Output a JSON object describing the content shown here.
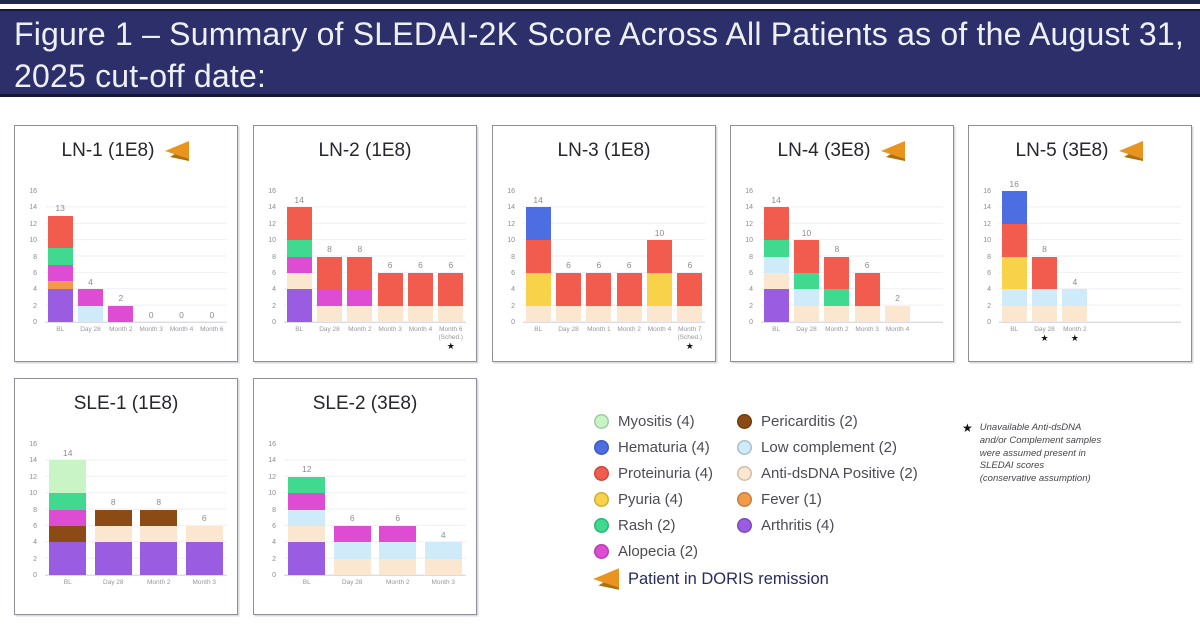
{
  "header": {
    "title": "Figure 1 – Summary of SLEDAI-2K Score Across All Patients as of the August 31, 2025 cut-off date:"
  },
  "colors": {
    "myositis": "#c9f5c6",
    "hematuria": "#4d6ee3",
    "proteinuria": "#f25c4e",
    "pyuria": "#f8d34a",
    "rash": "#3fd98f",
    "alopecia": "#de4cd3",
    "pericarditis": "#8c4a15",
    "low_complement": "#cfeaf8",
    "anti_dsdna": "#fbe7d0",
    "fever": "#f29a4a",
    "arthritis": "#9a5ce0",
    "arrow": "#e8941f",
    "arrow_dark": "#b06f0e",
    "banner_bg": "#2c2f6a"
  },
  "legend": {
    "columns": [
      [
        {
          "key": "myositis",
          "label": "Myositis (4)"
        },
        {
          "key": "hematuria",
          "label": "Hematuria (4)"
        },
        {
          "key": "proteinuria",
          "label": "Proteinuria (4)"
        },
        {
          "key": "pyuria",
          "label": "Pyuria (4)"
        },
        {
          "key": "rash",
          "label": "Rash (2)"
        },
        {
          "key": "alopecia",
          "label": "Alopecia (2)"
        }
      ],
      [
        {
          "key": "pericarditis",
          "label": "Pericarditis (2)"
        },
        {
          "key": "low_complement",
          "label": "Low complement (2)"
        },
        {
          "key": "anti_dsdna",
          "label": "Anti-dsDNA Positive (2)"
        },
        {
          "key": "fever",
          "label": "Fever (1)"
        },
        {
          "key": "arthritis",
          "label": "Arthritis (4)"
        }
      ]
    ],
    "doris_label": "Patient in DORIS remission"
  },
  "footnote": {
    "symbol": "★",
    "lines": [
      "Unavailable Anti-dsDNA",
      "and/or Complement samples",
      "were assumed present in",
      "SLEDAI scores",
      "(conservative assumption)"
    ]
  },
  "chart_data": [
    {
      "id": "ln1",
      "type": "bar",
      "title": "LN-1 (1E8)",
      "doris_arrow": true,
      "ylim": [
        0,
        16
      ],
      "yticks": [
        16,
        14,
        12,
        10,
        8,
        6,
        4,
        2,
        0
      ],
      "slots": 6,
      "categories": [
        {
          "label": "BL"
        },
        {
          "label": "Day 28"
        },
        {
          "label": "Month 2"
        },
        {
          "label": "Month 3"
        },
        {
          "label": "Month 4"
        },
        {
          "label": "Month 6"
        }
      ],
      "bars": [
        {
          "total": 13,
          "segments": [
            {
              "key": "arthritis",
              "value": 4
            },
            {
              "key": "fever",
              "value": 1
            },
            {
              "key": "alopecia",
              "value": 2
            },
            {
              "key": "rash",
              "value": 2
            },
            {
              "key": "proteinuria",
              "value": 4
            }
          ]
        },
        {
          "total": 4,
          "segments": [
            {
              "key": "low_complement",
              "value": 2
            },
            {
              "key": "alopecia",
              "value": 2
            }
          ]
        },
        {
          "total": 2,
          "segments": [
            {
              "key": "alopecia",
              "value": 2
            }
          ]
        },
        {
          "total": 0,
          "segments": []
        },
        {
          "total": 0,
          "segments": []
        },
        {
          "total": 0,
          "segments": []
        }
      ]
    },
    {
      "id": "ln2",
      "type": "bar",
      "title": "LN-2 (1E8)",
      "doris_arrow": false,
      "ylim": [
        0,
        16
      ],
      "yticks": [
        16,
        14,
        12,
        10,
        8,
        6,
        4,
        2,
        0
      ],
      "slots": 6,
      "categories": [
        {
          "label": "BL"
        },
        {
          "label": "Day 28"
        },
        {
          "label": "Month 2"
        },
        {
          "label": "Month 3"
        },
        {
          "label": "Month 4"
        },
        {
          "label": "Month 6",
          "sublabel": "(Sched.)",
          "star": true
        }
      ],
      "bars": [
        {
          "total": 14,
          "segments": [
            {
              "key": "arthritis",
              "value": 4
            },
            {
              "key": "anti_dsdna",
              "value": 2
            },
            {
              "key": "alopecia",
              "value": 2
            },
            {
              "key": "rash",
              "value": 2
            },
            {
              "key": "proteinuria",
              "value": 4
            }
          ]
        },
        {
          "total": 8,
          "segments": [
            {
              "key": "anti_dsdna",
              "value": 2
            },
            {
              "key": "alopecia",
              "value": 2
            },
            {
              "key": "proteinuria",
              "value": 4
            }
          ]
        },
        {
          "total": 8,
          "segments": [
            {
              "key": "anti_dsdna",
              "value": 2
            },
            {
              "key": "alopecia",
              "value": 2
            },
            {
              "key": "proteinuria",
              "value": 4
            }
          ]
        },
        {
          "total": 6,
          "segments": [
            {
              "key": "anti_dsdna",
              "value": 2
            },
            {
              "key": "proteinuria",
              "value": 4
            }
          ]
        },
        {
          "total": 6,
          "segments": [
            {
              "key": "anti_dsdna",
              "value": 2
            },
            {
              "key": "proteinuria",
              "value": 4
            }
          ]
        },
        {
          "total": 6,
          "segments": [
            {
              "key": "anti_dsdna",
              "value": 2
            },
            {
              "key": "proteinuria",
              "value": 4
            }
          ]
        }
      ]
    },
    {
      "id": "ln3",
      "type": "bar",
      "title": "LN-3 (1E8)",
      "doris_arrow": false,
      "ylim": [
        0,
        16
      ],
      "yticks": [
        16,
        14,
        12,
        10,
        8,
        6,
        4,
        2,
        0
      ],
      "slots": 6,
      "categories": [
        {
          "label": "BL"
        },
        {
          "label": "Day 28"
        },
        {
          "label": "Month 1"
        },
        {
          "label": "Month 2"
        },
        {
          "label": "Month 4"
        },
        {
          "label": "Month 7",
          "sublabel": "(Sched.)",
          "star": true
        }
      ],
      "bars": [
        {
          "total": 14,
          "segments": [
            {
              "key": "anti_dsdna",
              "value": 2
            },
            {
              "key": "pyuria",
              "value": 4
            },
            {
              "key": "proteinuria",
              "value": 4
            },
            {
              "key": "hematuria",
              "value": 4
            }
          ]
        },
        {
          "total": 6,
          "segments": [
            {
              "key": "anti_dsdna",
              "value": 2
            },
            {
              "key": "proteinuria",
              "value": 4
            }
          ]
        },
        {
          "total": 6,
          "segments": [
            {
              "key": "anti_dsdna",
              "value": 2
            },
            {
              "key": "proteinuria",
              "value": 4
            }
          ]
        },
        {
          "total": 6,
          "segments": [
            {
              "key": "anti_dsdna",
              "value": 2
            },
            {
              "key": "proteinuria",
              "value": 4
            }
          ]
        },
        {
          "total": 10,
          "segments": [
            {
              "key": "anti_dsdna",
              "value": 2
            },
            {
              "key": "pyuria",
              "value": 4
            },
            {
              "key": "proteinuria",
              "value": 4
            }
          ]
        },
        {
          "total": 6,
          "segments": [
            {
              "key": "anti_dsdna",
              "value": 2
            },
            {
              "key": "proteinuria",
              "value": 4
            }
          ]
        }
      ]
    },
    {
      "id": "ln4",
      "type": "bar",
      "title": "LN-4 (3E8)",
      "doris_arrow": true,
      "ylim": [
        0,
        16
      ],
      "yticks": [
        16,
        14,
        12,
        10,
        8,
        6,
        4,
        2,
        0
      ],
      "slots": 6,
      "categories": [
        {
          "label": "BL"
        },
        {
          "label": "Day 28"
        },
        {
          "label": "Month 2"
        },
        {
          "label": "Month 3"
        },
        {
          "label": "Month 4"
        }
      ],
      "bars": [
        {
          "total": 14,
          "segments": [
            {
              "key": "arthritis",
              "value": 4
            },
            {
              "key": "anti_dsdna",
              "value": 2
            },
            {
              "key": "low_complement",
              "value": 2
            },
            {
              "key": "rash",
              "value": 2
            },
            {
              "key": "proteinuria",
              "value": 4
            }
          ]
        },
        {
          "total": 10,
          "segments": [
            {
              "key": "anti_dsdna",
              "value": 2
            },
            {
              "key": "low_complement",
              "value": 2
            },
            {
              "key": "rash",
              "value": 2
            },
            {
              "key": "proteinuria",
              "value": 4
            }
          ]
        },
        {
          "total": 8,
          "segments": [
            {
              "key": "anti_dsdna",
              "value": 2
            },
            {
              "key": "rash",
              "value": 2
            },
            {
              "key": "proteinuria",
              "value": 4
            }
          ]
        },
        {
          "total": 6,
          "segments": [
            {
              "key": "anti_dsdna",
              "value": 2
            },
            {
              "key": "proteinuria",
              "value": 4
            }
          ]
        },
        {
          "total": 2,
          "segments": [
            {
              "key": "anti_dsdna",
              "value": 2
            }
          ]
        }
      ]
    },
    {
      "id": "ln5",
      "type": "bar",
      "title": "LN-5 (3E8)",
      "doris_arrow": true,
      "ylim": [
        0,
        16
      ],
      "yticks": [
        16,
        14,
        12,
        10,
        8,
        6,
        4,
        2,
        0
      ],
      "slots": 6,
      "categories": [
        {
          "label": "BL"
        },
        {
          "label": "Day 28",
          "star": true
        },
        {
          "label": "Month 2",
          "star": true
        }
      ],
      "bars": [
        {
          "total": 16,
          "segments": [
            {
              "key": "anti_dsdna",
              "value": 2
            },
            {
              "key": "low_complement",
              "value": 2
            },
            {
              "key": "pyuria",
              "value": 4
            },
            {
              "key": "proteinuria",
              "value": 4
            },
            {
              "key": "hematuria",
              "value": 4
            }
          ]
        },
        {
          "total": 8,
          "segments": [
            {
              "key": "anti_dsdna",
              "value": 2
            },
            {
              "key": "low_complement",
              "value": 2
            },
            {
              "key": "proteinuria",
              "value": 4
            }
          ]
        },
        {
          "total": 4,
          "segments": [
            {
              "key": "anti_dsdna",
              "value": 2
            },
            {
              "key": "low_complement",
              "value": 2
            }
          ]
        }
      ]
    },
    {
      "id": "sle1",
      "type": "bar",
      "title": "SLE-1 (1E8)",
      "doris_arrow": false,
      "ylim": [
        0,
        16
      ],
      "yticks": [
        16,
        14,
        12,
        10,
        8,
        6,
        4,
        2,
        0
      ],
      "slots": 4,
      "categories": [
        {
          "label": "BL"
        },
        {
          "label": "Day 28"
        },
        {
          "label": "Month 2"
        },
        {
          "label": "Month 3"
        }
      ],
      "bars": [
        {
          "total": 14,
          "segments": [
            {
              "key": "arthritis",
              "value": 4
            },
            {
              "key": "pericarditis",
              "value": 2
            },
            {
              "key": "alopecia",
              "value": 2
            },
            {
              "key": "rash",
              "value": 2
            },
            {
              "key": "myositis",
              "value": 4
            }
          ]
        },
        {
          "total": 8,
          "segments": [
            {
              "key": "arthritis",
              "value": 4
            },
            {
              "key": "anti_dsdna",
              "value": 2
            },
            {
              "key": "pericarditis",
              "value": 2
            }
          ]
        },
        {
          "total": 8,
          "segments": [
            {
              "key": "arthritis",
              "value": 4
            },
            {
              "key": "anti_dsdna",
              "value": 2
            },
            {
              "key": "pericarditis",
              "value": 2
            }
          ]
        },
        {
          "total": 6,
          "segments": [
            {
              "key": "arthritis",
              "value": 4
            },
            {
              "key": "anti_dsdna",
              "value": 2
            }
          ]
        }
      ]
    },
    {
      "id": "sle2",
      "type": "bar",
      "title": "SLE-2 (3E8)",
      "doris_arrow": false,
      "ylim": [
        0,
        16
      ],
      "yticks": [
        16,
        14,
        12,
        10,
        8,
        6,
        4,
        2,
        0
      ],
      "slots": 4,
      "categories": [
        {
          "label": "BL"
        },
        {
          "label": "Day 28"
        },
        {
          "label": "Month 2"
        },
        {
          "label": "Month 3"
        }
      ],
      "bars": [
        {
          "total": 12,
          "segments": [
            {
              "key": "arthritis",
              "value": 4
            },
            {
              "key": "anti_dsdna",
              "value": 2
            },
            {
              "key": "low_complement",
              "value": 2
            },
            {
              "key": "alopecia",
              "value": 2
            },
            {
              "key": "rash",
              "value": 2
            }
          ]
        },
        {
          "total": 6,
          "segments": [
            {
              "key": "anti_dsdna",
              "value": 2
            },
            {
              "key": "low_complement",
              "value": 2
            },
            {
              "key": "alopecia",
              "value": 2
            }
          ]
        },
        {
          "total": 6,
          "segments": [
            {
              "key": "anti_dsdna",
              "value": 2
            },
            {
              "key": "low_complement",
              "value": 2
            },
            {
              "key": "alopecia",
              "value": 2
            }
          ]
        },
        {
          "total": 4,
          "segments": [
            {
              "key": "anti_dsdna",
              "value": 2
            },
            {
              "key": "low_complement",
              "value": 2
            }
          ]
        }
      ]
    }
  ]
}
